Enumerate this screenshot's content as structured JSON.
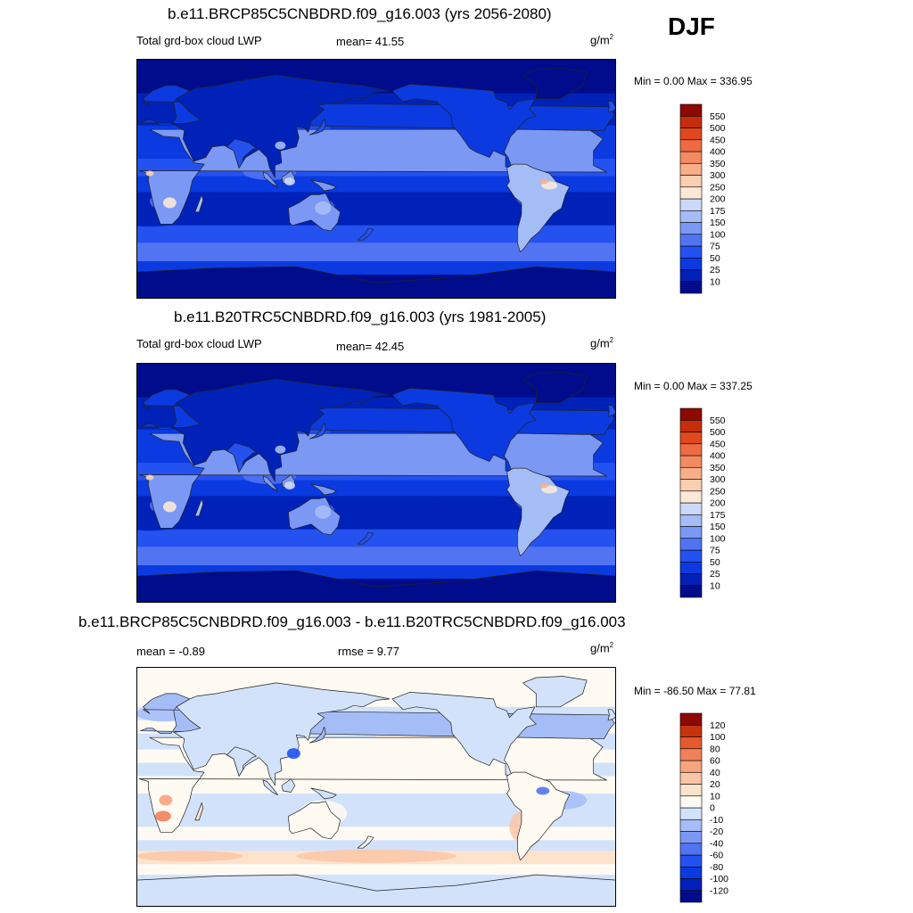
{
  "season": "DJF",
  "colors": {
    "abs_scale": [
      "#000c8b",
      "#0022b8",
      "#0a3ae0",
      "#2452f0",
      "#5274f2",
      "#7c98f5",
      "#a5bdf7",
      "#cdd9fb",
      "#fbe8d8",
      "#fbcfb1",
      "#f9ad89",
      "#f38a62",
      "#ee6b42",
      "#e2481d",
      "#c42e0b",
      "#8c0a00"
    ],
    "diff_scale": [
      "#000c8b",
      "#0022b8",
      "#0a3ae0",
      "#2452f0",
      "#5274f2",
      "#7c98f5",
      "#a5bdf7",
      "#d2e2fb",
      "#fffaf2",
      "#fde2cc",
      "#fbc6a6",
      "#f8a47f",
      "#f08159",
      "#e45a2e",
      "#c6330d",
      "#8c0a00"
    ],
    "ocean_abs": "#1b3fd6",
    "ocean_diff": "#dde9fb",
    "coast": "#222222"
  },
  "panels": [
    {
      "title": "b.e11.BRCP85C5CNBDRD.f09_g16.003 (yrs 2056-2080)",
      "left_label": "Total grd-box cloud LWP",
      "stat_label": "mean=  41.55",
      "units_base": "g/m",
      "units_exp": "2",
      "minmax": "Min =   0.00 Max = 336.95",
      "levels": [
        "10",
        "25",
        "50",
        "75",
        "100",
        "150",
        "175",
        "200",
        "250",
        "300",
        "350",
        "400",
        "450",
        "500",
        "550"
      ]
    },
    {
      "title": "b.e11.B20TRC5CNBDRD.f09_g16.003 (yrs 1981-2005)",
      "left_label": "Total grd-box cloud LWP",
      "stat_label": "mean=  42.45",
      "units_base": "g/m",
      "units_exp": "2",
      "minmax": "Min =   0.00 Max = 337.25",
      "levels": [
        "10",
        "25",
        "50",
        "75",
        "100",
        "150",
        "175",
        "200",
        "250",
        "300",
        "350",
        "400",
        "450",
        "500",
        "550"
      ]
    },
    {
      "title": "b.e11.BRCP85C5CNBDRD.f09_g16.003 - b.e11.B20TRC5CNBDRD.f09_g16.003",
      "left_label": "mean =  -0.89",
      "stat_label": "rmse =   9.77",
      "units_base": "g/m",
      "units_exp": "2",
      "minmax": "Min = -86.50 Max =  77.81",
      "levels": [
        "-120",
        "-100",
        "-80",
        "-60",
        "-40",
        "-20",
        "-10",
        "0",
        "10",
        "20",
        "40",
        "60",
        "80",
        "100",
        "120"
      ]
    }
  ]
}
